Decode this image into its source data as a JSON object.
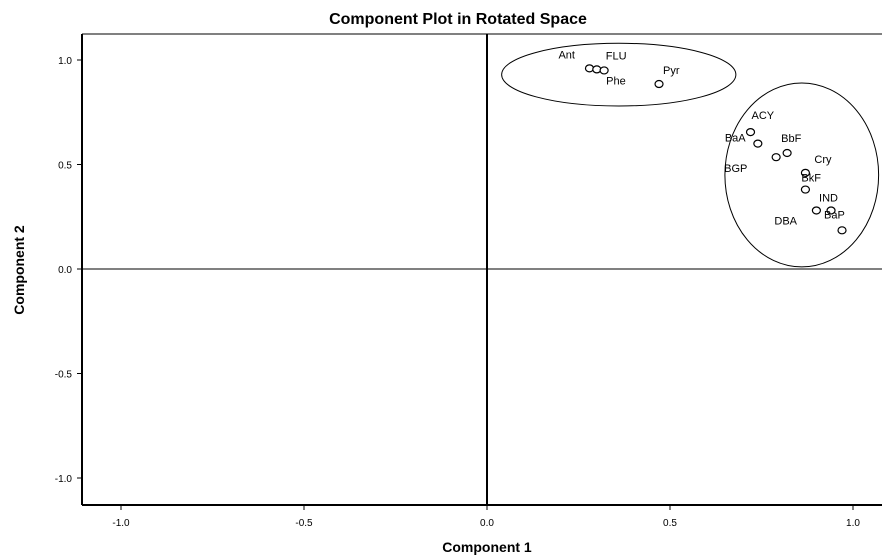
{
  "chart_data": {
    "type": "scatter",
    "title": "Component Plot in Rotated Space",
    "xlabel": "Component 1",
    "ylabel": "Component 2",
    "xlim": [
      -1.1,
      1.1
    ],
    "ylim": [
      -1.1,
      1.1
    ],
    "x_ticks": [
      "-1.0",
      "-0.5",
      "0.0",
      "0.5",
      "1.0"
    ],
    "y_ticks": [
      "1.0",
      "0.5",
      "0.0",
      "-0.5",
      "-1.0"
    ],
    "x_tick_values": [
      -1.0,
      -0.5,
      0.0,
      0.5,
      1.0
    ],
    "y_tick_values": [
      1.0,
      0.5,
      0.0,
      -0.5,
      -1.0
    ],
    "grid": false,
    "points": [
      {
        "label": "Ant",
        "x": 0.28,
        "y": 0.96
      },
      {
        "label": "FLU",
        "x": 0.3,
        "y": 0.955
      },
      {
        "label": "Phe",
        "x": 0.32,
        "y": 0.95
      },
      {
        "label": "Pyr",
        "x": 0.47,
        "y": 0.885
      },
      {
        "label": "ACY",
        "x": 0.72,
        "y": 0.655
      },
      {
        "label": "BaA",
        "x": 0.74,
        "y": 0.6
      },
      {
        "label": "BbF",
        "x": 0.82,
        "y": 0.555
      },
      {
        "label": "BGP",
        "x": 0.79,
        "y": 0.535
      },
      {
        "label": "Cry",
        "x": 0.87,
        "y": 0.46
      },
      {
        "label": "BkF",
        "x": 0.87,
        "y": 0.38
      },
      {
        "label": "IND",
        "x": 0.94,
        "y": 0.28
      },
      {
        "label": "DBA",
        "x": 0.9,
        "y": 0.28
      },
      {
        "label": "BaP",
        "x": 0.97,
        "y": 0.185
      }
    ],
    "groups": [
      {
        "center": [
          0.36,
          0.93
        ],
        "radius": [
          0.32,
          0.15
        ]
      },
      {
        "center": [
          0.86,
          0.45
        ],
        "radius": [
          0.21,
          0.44
        ]
      }
    ]
  }
}
